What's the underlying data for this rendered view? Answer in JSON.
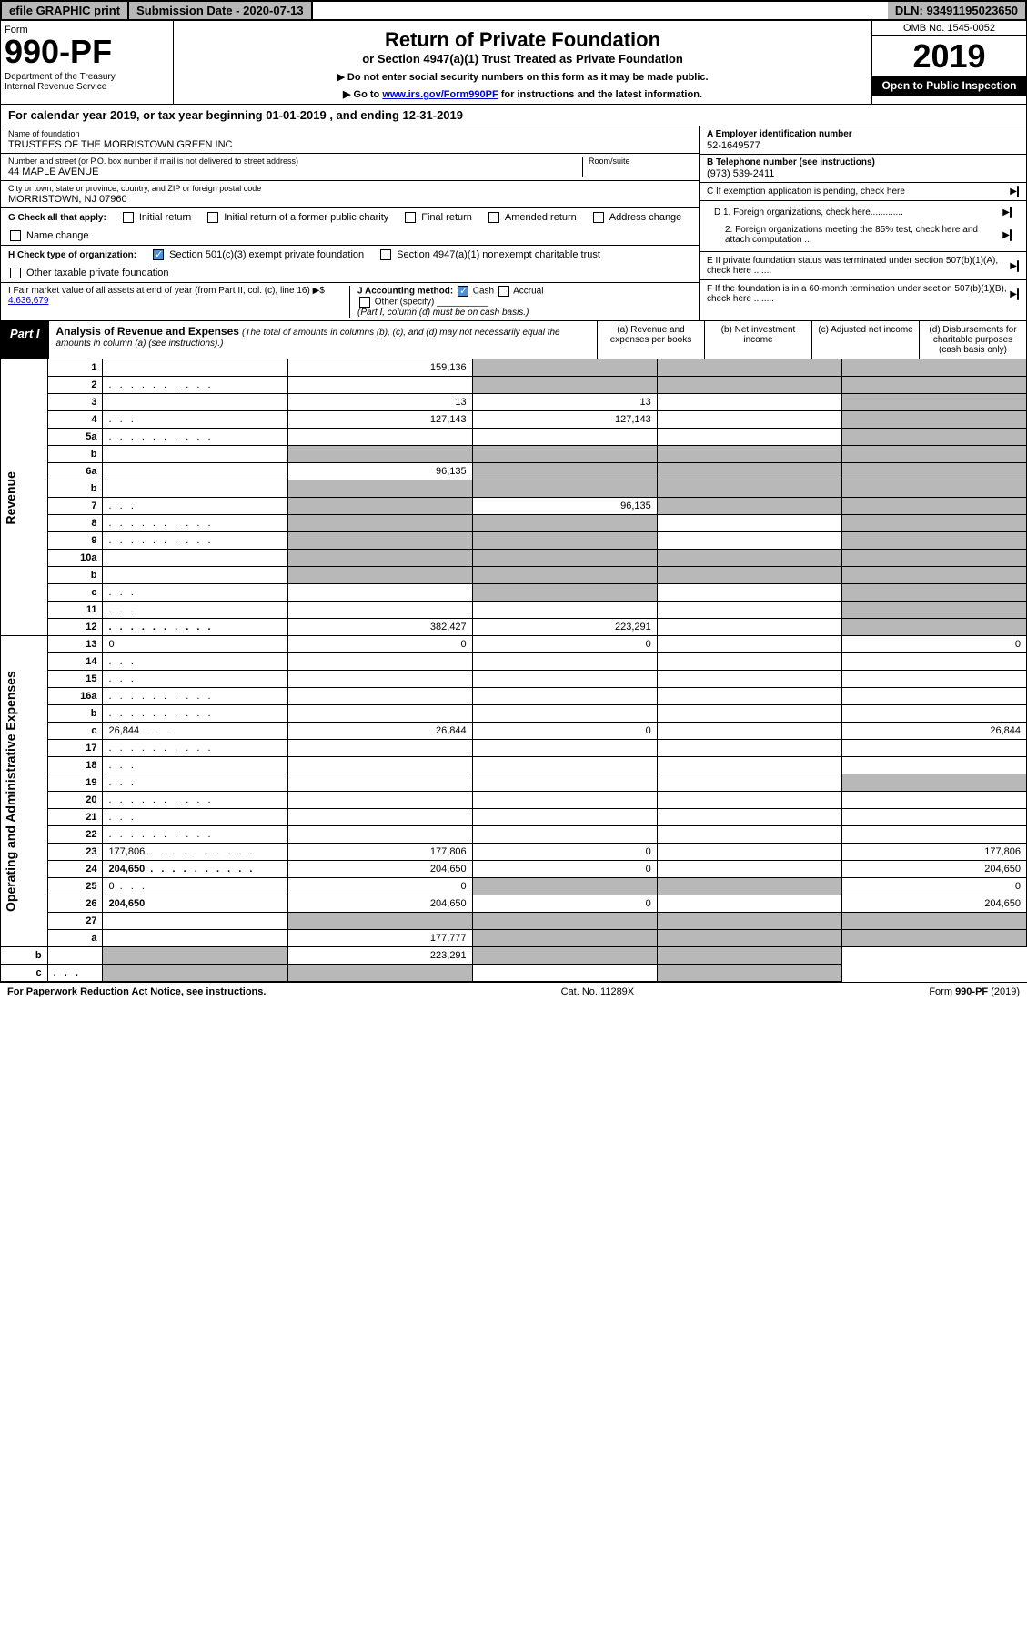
{
  "top": {
    "efile": "efile GRAPHIC print",
    "sub_label": "Submission Date - 2020-07-13",
    "dln": "DLN: 93491195023650"
  },
  "header": {
    "form_label": "Form",
    "form_num": "990-PF",
    "dept": "Department of the Treasury\nInternal Revenue Service",
    "title1": "Return of Private Foundation",
    "title2": "or Section 4947(a)(1) Trust Treated as Private Foundation",
    "instr1": "▶ Do not enter social security numbers on this form as it may be made public.",
    "instr2_pre": "▶ Go to ",
    "instr2_link": "www.irs.gov/Form990PF",
    "instr2_post": " for instructions and the latest information.",
    "omb": "OMB No. 1545-0052",
    "year": "2019",
    "open": "Open to Public Inspection"
  },
  "cal_year": "For calendar year 2019, or tax year beginning 01-01-2019                               , and ending 12-31-2019",
  "info": {
    "name_label": "Name of foundation",
    "name": "TRUSTEES OF THE MORRISTOWN GREEN INC",
    "addr_label": "Number and street (or P.O. box number if mail is not delivered to street address)",
    "addr": "44 MAPLE AVENUE",
    "room_label": "Room/suite",
    "city_label": "City or town, state or province, country, and ZIP or foreign postal code",
    "city": "MORRISTOWN, NJ  07960",
    "a_label": "A Employer identification number",
    "a_val": "52-1649577",
    "b_label": "B Telephone number (see instructions)",
    "b_val": "(973) 539-2411",
    "c_label": "C If exemption application is pending, check here",
    "d1": "D 1. Foreign organizations, check here.............",
    "d2": "2. Foreign organizations meeting the 85% test, check here and attach computation ...",
    "e_label": "E  If private foundation status was terminated under section 507(b)(1)(A), check here .......",
    "f_label": "F  If the foundation is in a 60-month termination under section 507(b)(1)(B), check here ........"
  },
  "g": {
    "label": "G Check all that apply:",
    "items": [
      "Initial return",
      "Initial return of a former public charity",
      "Final return",
      "Amended return",
      "Address change",
      "Name change"
    ]
  },
  "h": {
    "label": "H Check type of organization:",
    "items": [
      "Section 501(c)(3) exempt private foundation",
      "Section 4947(a)(1) nonexempt charitable trust",
      "Other taxable private foundation"
    ]
  },
  "i": {
    "label": "I Fair market value of all assets at end of year (from Part II, col. (c), line 16) ▶$",
    "val": "4,636,679"
  },
  "j": {
    "label": "J Accounting method:",
    "cash": "Cash",
    "accrual": "Accrual",
    "other": "Other (specify)",
    "note": "(Part I, column (d) must be on cash basis.)"
  },
  "part1": {
    "label": "Part I",
    "title": "Analysis of Revenue and Expenses",
    "sub": "(The total of amounts in columns (b), (c), and (d) may not necessarily equal the amounts in column (a) (see instructions).)",
    "cols": [
      "(a)    Revenue and expenses per books",
      "(b)   Net investment income",
      "(c)   Adjusted net income",
      "(d)   Disbursements for charitable purposes (cash basis only)"
    ]
  },
  "revenue_label": "Revenue",
  "opex_label": "Operating and Administrative Expenses",
  "rows": [
    {
      "n": "1",
      "d": "",
      "a": "159,136",
      "b": "",
      "c": "",
      "sb": true,
      "sc": true,
      "sd": true
    },
    {
      "n": "2",
      "d": "",
      "dots": true,
      "a": "",
      "b": "",
      "c": "",
      "sb": true,
      "sc": true,
      "sd": true
    },
    {
      "n": "3",
      "d": "",
      "a": "13",
      "b": "13",
      "c": "",
      "sd": true
    },
    {
      "n": "4",
      "d": "",
      "dots3": true,
      "a": "127,143",
      "b": "127,143",
      "c": "",
      "sd": true
    },
    {
      "n": "5a",
      "d": "",
      "dots": true,
      "a": "",
      "b": "",
      "c": "",
      "sd": true
    },
    {
      "n": "b",
      "d": "",
      "a": "",
      "b": "",
      "c": "",
      "sa": true,
      "sb": true,
      "sc": true,
      "sd": true
    },
    {
      "n": "6a",
      "d": "",
      "a": "96,135",
      "b": "",
      "c": "",
      "sb": true,
      "sc": true,
      "sd": true
    },
    {
      "n": "b",
      "d": "",
      "a": "",
      "b": "",
      "c": "",
      "sa": true,
      "sb": true,
      "sc": true,
      "sd": true
    },
    {
      "n": "7",
      "d": "",
      "dots3": true,
      "a": "",
      "b": "96,135",
      "c": "",
      "sa": true,
      "sc": true,
      "sd": true
    },
    {
      "n": "8",
      "d": "",
      "dots": true,
      "a": "",
      "b": "",
      "c": "",
      "sa": true,
      "sb": true,
      "sd": true
    },
    {
      "n": "9",
      "d": "",
      "dots": true,
      "a": "",
      "b": "",
      "c": "",
      "sa": true,
      "sb": true,
      "sd": true
    },
    {
      "n": "10a",
      "d": "",
      "a": "",
      "b": "",
      "c": "",
      "sa": true,
      "sb": true,
      "sc": true,
      "sd": true
    },
    {
      "n": "b",
      "d": "",
      "a": "",
      "b": "",
      "c": "",
      "sa": true,
      "sb": true,
      "sc": true,
      "sd": true
    },
    {
      "n": "c",
      "d": "",
      "dots3": true,
      "a": "",
      "b": "",
      "c": "",
      "sb": true,
      "sd": true
    },
    {
      "n": "11",
      "d": "",
      "dots3": true,
      "a": "",
      "b": "",
      "c": "",
      "sd": true
    },
    {
      "n": "12",
      "d": "",
      "dots": true,
      "bold": true,
      "a": "382,427",
      "b": "223,291",
      "c": "",
      "sd": true
    },
    {
      "n": "13",
      "d": "0",
      "a": "0",
      "b": "0",
      "c": ""
    },
    {
      "n": "14",
      "d": "",
      "dots3": true,
      "a": "",
      "b": "",
      "c": ""
    },
    {
      "n": "15",
      "d": "",
      "dots3": true,
      "a": "",
      "b": "",
      "c": ""
    },
    {
      "n": "16a",
      "d": "",
      "dots": true,
      "a": "",
      "b": "",
      "c": ""
    },
    {
      "n": "b",
      "d": "",
      "dots": true,
      "a": "",
      "b": "",
      "c": ""
    },
    {
      "n": "c",
      "d": "26,844",
      "dots3": true,
      "a": "26,844",
      "b": "0",
      "c": ""
    },
    {
      "n": "17",
      "d": "",
      "dots": true,
      "a": "",
      "b": "",
      "c": ""
    },
    {
      "n": "18",
      "d": "",
      "dots3": true,
      "a": "",
      "b": "",
      "c": ""
    },
    {
      "n": "19",
      "d": "",
      "dots3": true,
      "a": "",
      "b": "",
      "c": "",
      "sd": true
    },
    {
      "n": "20",
      "d": "",
      "dots": true,
      "a": "",
      "b": "",
      "c": ""
    },
    {
      "n": "21",
      "d": "",
      "dots3": true,
      "a": "",
      "b": "",
      "c": ""
    },
    {
      "n": "22",
      "d": "",
      "dots": true,
      "a": "",
      "b": "",
      "c": ""
    },
    {
      "n": "23",
      "d": "177,806",
      "dots": true,
      "a": "177,806",
      "b": "0",
      "c": ""
    },
    {
      "n": "24",
      "d": "204,650",
      "dots": true,
      "bold": true,
      "a": "204,650",
      "b": "0",
      "c": ""
    },
    {
      "n": "25",
      "d": "0",
      "dots3": true,
      "a": "0",
      "b": "",
      "c": "",
      "sb": true,
      "sc": true
    },
    {
      "n": "26",
      "d": "204,650",
      "bold": true,
      "a": "204,650",
      "b": "0",
      "c": ""
    },
    {
      "n": "27",
      "d": "",
      "a": "",
      "b": "",
      "c": "",
      "sa": true,
      "sb": true,
      "sc": true,
      "sd": true
    },
    {
      "n": "a",
      "d": "",
      "bold": true,
      "a": "177,777",
      "b": "",
      "c": "",
      "sb": true,
      "sc": true,
      "sd": true
    },
    {
      "n": "b",
      "d": "",
      "bold": true,
      "a": "",
      "b": "223,291",
      "c": "",
      "sa": true,
      "sc": true,
      "sd": true
    },
    {
      "n": "c",
      "d": "",
      "dots3": true,
      "bold": true,
      "a": "",
      "b": "",
      "c": "",
      "sa": true,
      "sb": true,
      "sd": true
    }
  ],
  "footer": {
    "left": "For Paperwork Reduction Act Notice, see instructions.",
    "mid": "Cat. No. 11289X",
    "right": "Form 990-PF (2019)"
  }
}
